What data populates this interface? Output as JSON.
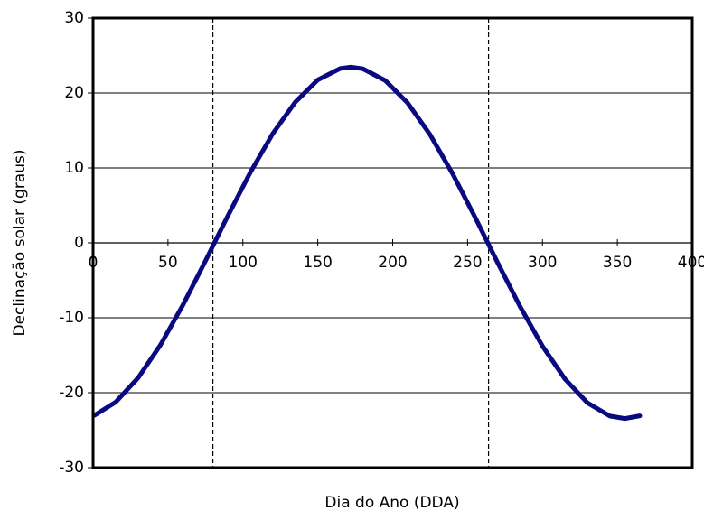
{
  "chart_data": {
    "type": "line",
    "xlabel": "Dia do Ano (DDA)",
    "ylabel": "Declinação solar (graus)",
    "x": [
      1,
      15,
      30,
      45,
      60,
      75,
      81,
      90,
      105,
      120,
      135,
      150,
      165,
      172,
      180,
      195,
      210,
      225,
      240,
      255,
      264,
      270,
      285,
      300,
      315,
      330,
      345,
      355,
      365
    ],
    "series": [
      {
        "color": "#0a0a80",
        "values": [
          -23.01,
          -21.27,
          -18.04,
          -13.62,
          -8.29,
          -2.42,
          0,
          3.62,
          9.41,
          14.59,
          18.79,
          21.75,
          23.27,
          23.45,
          23.24,
          21.67,
          18.67,
          14.43,
          9.23,
          3.42,
          -0.2,
          -2.62,
          -8.48,
          -13.78,
          -18.17,
          -21.35,
          -23.12,
          -23.45,
          -23.09
        ]
      }
    ],
    "vlines": [
      80,
      264
    ],
    "xlim": [
      0,
      400
    ],
    "xticks": [
      0,
      50,
      100,
      150,
      200,
      250,
      300,
      350,
      400
    ],
    "ylim": [
      -30,
      30
    ],
    "yticks": [
      -30,
      -20,
      -10,
      0,
      10,
      20,
      30
    ],
    "grid": true
  }
}
